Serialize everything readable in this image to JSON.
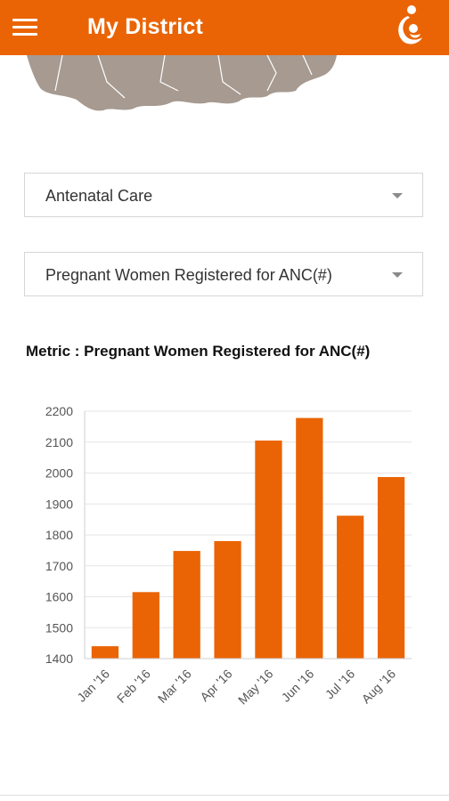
{
  "appbar": {
    "title": "My District",
    "menu_icon": "hamburger-menu-icon",
    "logo_icon": "mother-child-logo-icon",
    "color": "#ea6405"
  },
  "filters": {
    "program": {
      "selected": "Antenatal Care"
    },
    "indicator": {
      "selected": "Pregnant Women Registered for ANC(#)"
    }
  },
  "metric_label": "Metric : Pregnant Women Registered for ANC(#)",
  "chart_data": {
    "type": "bar",
    "title": "",
    "xlabel": "",
    "ylabel": "",
    "categories": [
      "Jan '16",
      "Feb '16",
      "Mar '16",
      "Apr '16",
      "May '16",
      "Jun '16",
      "Jul '16",
      "Aug '16"
    ],
    "values": [
      1440,
      1615,
      1748,
      1780,
      2105,
      2178,
      1862,
      1987
    ],
    "ylim": [
      1400,
      2200
    ],
    "yticks": [
      1400,
      1500,
      1600,
      1700,
      1800,
      1900,
      2000,
      2100,
      2200
    ],
    "grid": true,
    "bar_color": "#ea6405"
  }
}
